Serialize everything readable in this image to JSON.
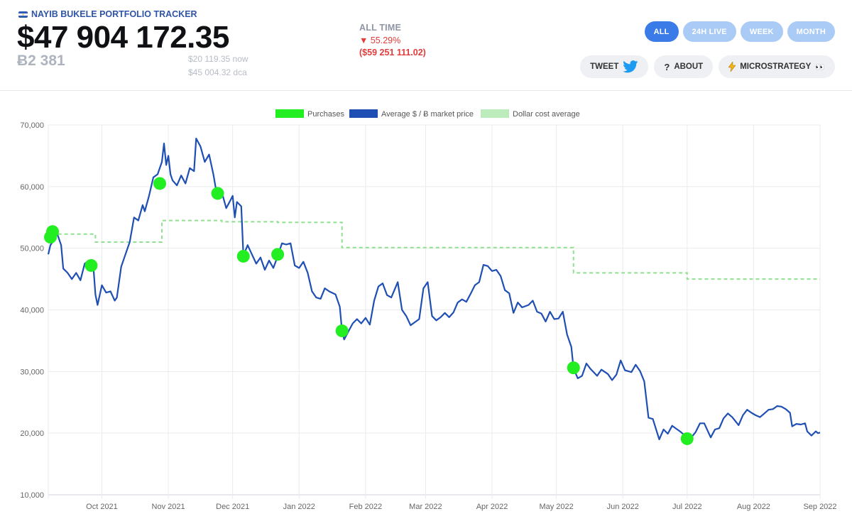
{
  "header": {
    "brand": "NAYIB BUKELE PORTFOLIO TRACKER",
    "total_value": "$47 904 172.35",
    "btc_holdings": "Ƀ2 381",
    "price_now": "$20 119.35",
    "price_now_suffix": "now",
    "price_dca": "$45 004.32",
    "price_dca_suffix": "dca",
    "alltime_label": "ALL TIME",
    "alltime_pct": "▼ 55.29%",
    "alltime_delta": "($59 251 111.02)"
  },
  "range_tabs": [
    {
      "label": "ALL",
      "active": true
    },
    {
      "label": "24H LIVE",
      "active": false
    },
    {
      "label": "WEEK",
      "active": false
    },
    {
      "label": "MONTH",
      "active": false
    }
  ],
  "actions": {
    "tweet_label": "TWEET",
    "tweet_icon": "twitter-bird-icon",
    "about_label": "ABOUT",
    "about_icon": "question-mark-icon",
    "microstrategy_label": "MICROSTRATEGY",
    "microstrategy_icon": "lightning-icon",
    "microstrategy_emoji": "👀"
  },
  "colors": {
    "price_line": "#1f4fb3",
    "purchase": "#22ee22",
    "dca": "#8fe08f",
    "accent": "#3b7be8",
    "negative": "#e23b3b"
  },
  "chart_data": {
    "type": "line",
    "legend": [
      {
        "name": "Purchases",
        "color": "#22ee22"
      },
      {
        "name": "Average $ / Ƀ market price",
        "color": "#1f4fb3"
      },
      {
        "name": "Dollar cost average",
        "color": "#8fe08f"
      }
    ],
    "legend_position": "top",
    "grid": true,
    "ylim": [
      10000,
      70000
    ],
    "y_ticks": [
      "10,000",
      "20,000",
      "30,000",
      "40,000",
      "50,000",
      "60,000",
      "70,000"
    ],
    "x_range": [
      "2021-09-06",
      "2022-09-01"
    ],
    "x_ticks": [
      {
        "date": "2021-10-01",
        "label": "Oct 2021"
      },
      {
        "date": "2021-11-01",
        "label": "Nov 2021"
      },
      {
        "date": "2021-12-01",
        "label": "Dec 2021"
      },
      {
        "date": "2022-01-01",
        "label": "Jan 2022"
      },
      {
        "date": "2022-02-01",
        "label": "Feb 2022"
      },
      {
        "date": "2022-03-01",
        "label": "Mar 2022"
      },
      {
        "date": "2022-04-01",
        "label": "Apr 2022"
      },
      {
        "date": "2022-05-01",
        "label": "May 2022"
      },
      {
        "date": "2022-06-01",
        "label": "Jun 2022"
      },
      {
        "date": "2022-07-01",
        "label": "Jul 2022"
      },
      {
        "date": "2022-08-01",
        "label": "Aug 2022"
      },
      {
        "date": "2022-09-01",
        "label": "Sep 2022"
      }
    ],
    "series": [
      {
        "name": "Average $ / Ƀ market price",
        "points": [
          [
            "2021-09-06",
            49000
          ],
          [
            "2021-09-07",
            50500
          ],
          [
            "2021-09-08",
            51000
          ],
          [
            "2021-09-10",
            52500
          ],
          [
            "2021-09-12",
            50500
          ],
          [
            "2021-09-13",
            46700
          ],
          [
            "2021-09-15",
            46000
          ],
          [
            "2021-09-17",
            45000
          ],
          [
            "2021-09-19",
            46000
          ],
          [
            "2021-09-21",
            44800
          ],
          [
            "2021-09-23",
            47500
          ],
          [
            "2021-09-25",
            48000
          ],
          [
            "2021-09-27",
            47200
          ],
          [
            "2021-09-28",
            42500
          ],
          [
            "2021-09-29",
            40800
          ],
          [
            "2021-10-01",
            44000
          ],
          [
            "2021-10-03",
            42800
          ],
          [
            "2021-10-05",
            43000
          ],
          [
            "2021-10-07",
            41500
          ],
          [
            "2021-10-08",
            42000
          ],
          [
            "2021-10-10",
            47000
          ],
          [
            "2021-10-12",
            49000
          ],
          [
            "2021-10-14",
            51000
          ],
          [
            "2021-10-16",
            55000
          ],
          [
            "2021-10-18",
            54500
          ],
          [
            "2021-10-20",
            57000
          ],
          [
            "2021-10-21",
            56000
          ],
          [
            "2021-10-23",
            58500
          ],
          [
            "2021-10-25",
            61500
          ],
          [
            "2021-10-27",
            62000
          ],
          [
            "2021-10-29",
            64000
          ],
          [
            "2021-10-30",
            67000
          ],
          [
            "2021-10-31",
            63500
          ],
          [
            "2021-11-01",
            65000
          ],
          [
            "2021-11-02",
            62000
          ],
          [
            "2021-11-03",
            61000
          ],
          [
            "2021-11-05",
            60200
          ],
          [
            "2021-11-07",
            61800
          ],
          [
            "2021-11-09",
            60500
          ],
          [
            "2021-11-11",
            63000
          ],
          [
            "2021-11-13",
            62500
          ],
          [
            "2021-11-14",
            67800
          ],
          [
            "2021-11-16",
            66500
          ],
          [
            "2021-11-18",
            64000
          ],
          [
            "2021-11-20",
            65200
          ],
          [
            "2021-11-22",
            62000
          ],
          [
            "2021-11-24",
            58000
          ],
          [
            "2021-11-26",
            59000
          ],
          [
            "2021-11-28",
            56500
          ],
          [
            "2021-11-30",
            57800
          ],
          [
            "2021-12-01",
            58500
          ],
          [
            "2021-12-02",
            55000
          ],
          [
            "2021-12-03",
            57500
          ],
          [
            "2021-12-05",
            56800
          ],
          [
            "2021-12-06",
            48800
          ],
          [
            "2021-12-08",
            50500
          ],
          [
            "2021-12-10",
            49000
          ],
          [
            "2021-12-12",
            47500
          ],
          [
            "2021-12-14",
            48500
          ],
          [
            "2021-12-16",
            46500
          ],
          [
            "2021-12-18",
            48000
          ],
          [
            "2021-12-20",
            46800
          ],
          [
            "2021-12-22",
            48700
          ],
          [
            "2021-12-24",
            50800
          ],
          [
            "2021-12-26",
            50600
          ],
          [
            "2021-12-28",
            50800
          ],
          [
            "2021-12-30",
            47200
          ],
          [
            "2022-01-01",
            46800
          ],
          [
            "2022-01-03",
            47800
          ],
          [
            "2022-01-05",
            46000
          ],
          [
            "2022-01-07",
            43000
          ],
          [
            "2022-01-09",
            42000
          ],
          [
            "2022-01-11",
            41800
          ],
          [
            "2022-01-13",
            43500
          ],
          [
            "2022-01-15",
            43000
          ],
          [
            "2022-01-18",
            42500
          ],
          [
            "2022-01-20",
            40500
          ],
          [
            "2022-01-21",
            36600
          ],
          [
            "2022-01-22",
            35200
          ],
          [
            "2022-01-24",
            36500
          ],
          [
            "2022-01-26",
            37800
          ],
          [
            "2022-01-28",
            38500
          ],
          [
            "2022-01-30",
            37800
          ],
          [
            "2022-02-01",
            38700
          ],
          [
            "2022-02-03",
            37600
          ],
          [
            "2022-02-05",
            41500
          ],
          [
            "2022-02-07",
            43800
          ],
          [
            "2022-02-09",
            44300
          ],
          [
            "2022-02-11",
            42400
          ],
          [
            "2022-02-13",
            42000
          ],
          [
            "2022-02-16",
            44500
          ],
          [
            "2022-02-18",
            40000
          ],
          [
            "2022-02-20",
            39000
          ],
          [
            "2022-02-22",
            37500
          ],
          [
            "2022-02-24",
            38000
          ],
          [
            "2022-02-26",
            38500
          ],
          [
            "2022-02-28",
            43500
          ],
          [
            "2022-03-02",
            44500
          ],
          [
            "2022-03-04",
            39000
          ],
          [
            "2022-03-06",
            38300
          ],
          [
            "2022-03-08",
            38800
          ],
          [
            "2022-03-10",
            39500
          ],
          [
            "2022-03-12",
            38800
          ],
          [
            "2022-03-14",
            39600
          ],
          [
            "2022-03-16",
            41200
          ],
          [
            "2022-03-18",
            41700
          ],
          [
            "2022-03-20",
            41300
          ],
          [
            "2022-03-22",
            42600
          ],
          [
            "2022-03-24",
            44000
          ],
          [
            "2022-03-26",
            44500
          ],
          [
            "2022-03-28",
            47300
          ],
          [
            "2022-03-30",
            47100
          ],
          [
            "2022-04-01",
            46300
          ],
          [
            "2022-04-03",
            46500
          ],
          [
            "2022-04-05",
            45500
          ],
          [
            "2022-04-07",
            43200
          ],
          [
            "2022-04-09",
            42700
          ],
          [
            "2022-04-11",
            39500
          ],
          [
            "2022-04-13",
            41200
          ],
          [
            "2022-04-15",
            40400
          ],
          [
            "2022-04-18",
            40800
          ],
          [
            "2022-04-20",
            41500
          ],
          [
            "2022-04-22",
            39700
          ],
          [
            "2022-04-24",
            39400
          ],
          [
            "2022-04-26",
            38100
          ],
          [
            "2022-04-28",
            39700
          ],
          [
            "2022-04-30",
            38500
          ],
          [
            "2022-05-02",
            38600
          ],
          [
            "2022-05-04",
            39700
          ],
          [
            "2022-05-06",
            36000
          ],
          [
            "2022-05-08",
            34000
          ],
          [
            "2022-05-09",
            30500
          ],
          [
            "2022-05-11",
            28900
          ],
          [
            "2022-05-13",
            29300
          ],
          [
            "2022-05-15",
            31300
          ],
          [
            "2022-05-17",
            30400
          ],
          [
            "2022-05-20",
            29300
          ],
          [
            "2022-05-22",
            30300
          ],
          [
            "2022-05-25",
            29600
          ],
          [
            "2022-05-27",
            28600
          ],
          [
            "2022-05-29",
            29500
          ],
          [
            "2022-05-31",
            31800
          ],
          [
            "2022-06-02",
            30200
          ],
          [
            "2022-06-05",
            29900
          ],
          [
            "2022-06-07",
            31100
          ],
          [
            "2022-06-09",
            30100
          ],
          [
            "2022-06-11",
            28400
          ],
          [
            "2022-06-13",
            22500
          ],
          [
            "2022-06-15",
            22300
          ],
          [
            "2022-06-18",
            19000
          ],
          [
            "2022-06-20",
            20600
          ],
          [
            "2022-06-22",
            19900
          ],
          [
            "2022-06-24",
            21200
          ],
          [
            "2022-06-26",
            20700
          ],
          [
            "2022-06-28",
            20200
          ],
          [
            "2022-07-01",
            19300
          ],
          [
            "2022-07-03",
            19300
          ],
          [
            "2022-07-05",
            20200
          ],
          [
            "2022-07-07",
            21600
          ],
          [
            "2022-07-09",
            21600
          ],
          [
            "2022-07-12",
            19300
          ],
          [
            "2022-07-14",
            20600
          ],
          [
            "2022-07-16",
            20800
          ],
          [
            "2022-07-18",
            22400
          ],
          [
            "2022-07-20",
            23200
          ],
          [
            "2022-07-22",
            22600
          ],
          [
            "2022-07-25",
            21300
          ],
          [
            "2022-07-27",
            22900
          ],
          [
            "2022-07-29",
            23800
          ],
          [
            "2022-07-31",
            23300
          ],
          [
            "2022-08-02",
            22900
          ],
          [
            "2022-08-04",
            22600
          ],
          [
            "2022-08-06",
            23200
          ],
          [
            "2022-08-08",
            23800
          ],
          [
            "2022-08-10",
            23900
          ],
          [
            "2022-08-12",
            24400
          ],
          [
            "2022-08-14",
            24300
          ],
          [
            "2022-08-16",
            23900
          ],
          [
            "2022-08-18",
            23300
          ],
          [
            "2022-08-19",
            21100
          ],
          [
            "2022-08-21",
            21500
          ],
          [
            "2022-08-23",
            21400
          ],
          [
            "2022-08-25",
            21600
          ],
          [
            "2022-08-26",
            20300
          ],
          [
            "2022-08-28",
            19600
          ],
          [
            "2022-08-30",
            20300
          ],
          [
            "2022-08-31",
            20000
          ],
          [
            "2022-09-01",
            20100
          ]
        ]
      },
      {
        "name": "Dollar cost average",
        "steps": [
          [
            "2021-09-06",
            51800
          ],
          [
            "2021-09-08",
            52300
          ],
          [
            "2021-09-28",
            51000
          ],
          [
            "2021-10-29",
            54500
          ],
          [
            "2021-11-26",
            54300
          ],
          [
            "2021-12-22",
            54200
          ],
          [
            "2022-01-21",
            50100
          ],
          [
            "2022-05-09",
            46000
          ],
          [
            "2022-07-01",
            45000
          ],
          [
            "2022-09-01",
            45000
          ]
        ]
      }
    ],
    "purchases": [
      [
        "2021-09-07",
        51800
      ],
      [
        "2021-09-08",
        52700
      ],
      [
        "2021-09-26",
        47200
      ],
      [
        "2021-10-28",
        60500
      ],
      [
        "2021-11-24",
        58900
      ],
      [
        "2021-12-06",
        48700
      ],
      [
        "2021-12-22",
        49000
      ],
      [
        "2022-01-21",
        36600
      ],
      [
        "2022-05-09",
        30600
      ],
      [
        "2022-07-01",
        19100
      ]
    ]
  }
}
